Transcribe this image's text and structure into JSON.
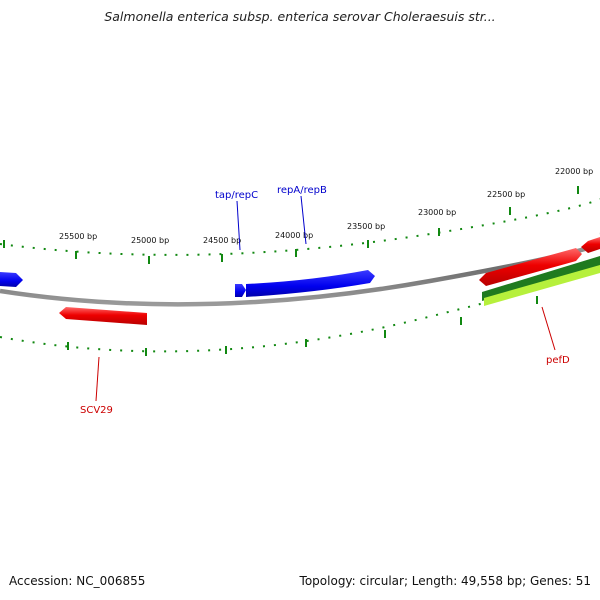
{
  "title": "Salmonella enterica subsp. enterica serovar Choleraesuis str...",
  "footer": {
    "accession": "Accession: NC_006855",
    "summary": "Topology: circular; Length: 49,558 bp; Genes: 51"
  },
  "bp_labels": [
    {
      "id": "bp-22000",
      "text": "22000 bp"
    },
    {
      "id": "bp-22500",
      "text": "22500 bp"
    },
    {
      "id": "bp-23000",
      "text": "23000 bp"
    },
    {
      "id": "bp-23500",
      "text": "23500 bp"
    },
    {
      "id": "bp-24000",
      "text": "24000 bp"
    },
    {
      "id": "bp-24500",
      "text": "24500 bp"
    },
    {
      "id": "bp-25000",
      "text": "25000 bp"
    },
    {
      "id": "bp-25500",
      "text": "25500 bp"
    }
  ],
  "gene_labels": [
    {
      "id": "tap-repc",
      "text": "tap/repC",
      "color": "#0000cc"
    },
    {
      "id": "repa-repb",
      "text": "repA/repB",
      "color": "#0000cc"
    },
    {
      "id": "pefd",
      "text": "pefD",
      "color": "#cc0000"
    },
    {
      "id": "scv29",
      "text": "SCV29",
      "color": "#cc0000"
    }
  ],
  "colors": {
    "backbone": "#8a8a8a",
    "blue_genes": "#0000ee",
    "red_genes": "#ee0000",
    "dark_green_genes": "#1f7a1f",
    "light_green_genes": "#b6f03c",
    "ticks": "#118811"
  }
}
